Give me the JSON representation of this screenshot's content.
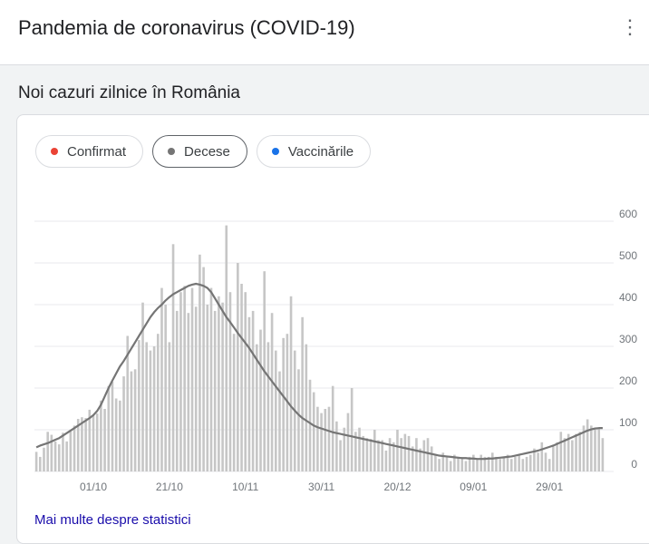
{
  "header": {
    "title": "Pandemia de coronavirus (COVID-19)",
    "more_label": "⋮"
  },
  "section": {
    "title": "Noi cazuri zilnice în România"
  },
  "chips": [
    {
      "label": "Confirmat",
      "color": "#ea4335",
      "selected": false
    },
    {
      "label": "Decese",
      "color": "#757575",
      "selected": true
    },
    {
      "label": "Vaccinările",
      "color": "#1a73e8",
      "selected": false
    }
  ],
  "footer": {
    "link_label": "Mai multe despre statistici"
  },
  "colors": {
    "bar": "#c6c6c6",
    "line": "#757575",
    "grid": "#e8eaed",
    "axis_text": "#70757a"
  },
  "chart_data": {
    "type": "bar",
    "title": "",
    "xlabel": "",
    "ylabel": "",
    "ylim": [
      0,
      600
    ],
    "y_ticks": [
      "600",
      "500",
      "400",
      "300",
      "200",
      "100",
      "0"
    ],
    "x_ticks": [
      {
        "label": "01/10",
        "index": 15
      },
      {
        "label": "21/10",
        "index": 35
      },
      {
        "label": "10/11",
        "index": 55
      },
      {
        "label": "30/11",
        "index": 75
      },
      {
        "label": "20/12",
        "index": 95
      },
      {
        "label": "09/01",
        "index": 115
      },
      {
        "label": "29/01",
        "index": 135
      }
    ],
    "grid": true,
    "series": [
      {
        "kind": "bars",
        "values": [
          47,
          35,
          57,
          95,
          88,
          72,
          65,
          93,
          72,
          96,
          110,
          126,
          130,
          128,
          148,
          134,
          139,
          170,
          150,
          205,
          215,
          175,
          170,
          228,
          325,
          240,
          245,
          315,
          405,
          310,
          290,
          300,
          330,
          440,
          400,
          310,
          545,
          385,
          430,
          445,
          380,
          440,
          395,
          520,
          490,
          400,
          440,
          385,
          420,
          405,
          590,
          430,
          330,
          500,
          450,
          430,
          370,
          385,
          305,
          340,
          480,
          310,
          380,
          290,
          240,
          320,
          330,
          420,
          290,
          245,
          370,
          305,
          220,
          190,
          155,
          140,
          150,
          155,
          205,
          120,
          75,
          105,
          140,
          200,
          95,
          105,
          85,
          80,
          78,
          100,
          75,
          75,
          50,
          80,
          70,
          100,
          80,
          90,
          85,
          60,
          80,
          55,
          75,
          80,
          60,
          40,
          30,
          45,
          35,
          25,
          40,
          35,
          30,
          25,
          35,
          40,
          30,
          40,
          35,
          35,
          45,
          35,
          30,
          35,
          40,
          30,
          35,
          40,
          30,
          35,
          40,
          55,
          45,
          70,
          45,
          30,
          60,
          70,
          95,
          80,
          90,
          75,
          90,
          95,
          110,
          125,
          110,
          100,
          105,
          80
        ]
      },
      {
        "kind": "line",
        "values": [
          58,
          62,
          65,
          68,
          72,
          76,
          80,
          86,
          92,
          98,
          104,
          110,
          116,
          122,
          128,
          135,
          145,
          160,
          180,
          200,
          218,
          235,
          252,
          265,
          280,
          295,
          310,
          325,
          340,
          355,
          370,
          382,
          392,
          400,
          410,
          418,
          425,
          430,
          435,
          440,
          445,
          448,
          450,
          448,
          445,
          440,
          430,
          415,
          400,
          385,
          370,
          358,
          345,
          332,
          320,
          308,
          296,
          282,
          268,
          254,
          240,
          228,
          216,
          204,
          192,
          180,
          168,
          156,
          146,
          136,
          128,
          122,
          116,
          110,
          106,
          103,
          100,
          97,
          94,
          92,
          90,
          88,
          86,
          84,
          82,
          80,
          78,
          76,
          74,
          72,
          70,
          68,
          66,
          64,
          62,
          60,
          58,
          56,
          54,
          52,
          50,
          48,
          46,
          44,
          42,
          40,
          38,
          37,
          36,
          35,
          34,
          33,
          32,
          32,
          31,
          31,
          30,
          30,
          30,
          31,
          31,
          32,
          33,
          34,
          35,
          36,
          38,
          40,
          42,
          44,
          46,
          48,
          50,
          53,
          56,
          59,
          62,
          66,
          70,
          74,
          78,
          82,
          86,
          90,
          94,
          98,
          101,
          103,
          104,
          104
        ]
      }
    ]
  }
}
